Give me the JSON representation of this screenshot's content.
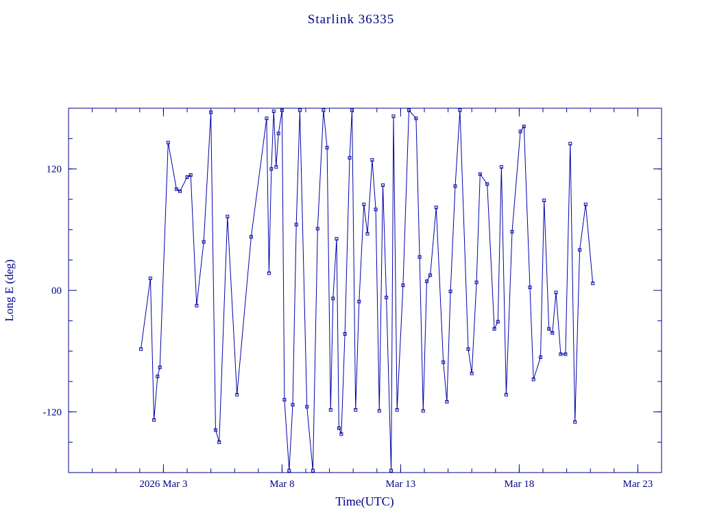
{
  "title": "Starlink 36335",
  "chart_data": {
    "type": "line",
    "title": "Starlink 36335",
    "xlabel": "Time(UTC)",
    "ylabel": "Long E (deg)",
    "x_axis_note": "t measured in days; t=4 corresponds to 2026 Mar 3, t=24 to Mar 23",
    "xlim": [
      0,
      25
    ],
    "ylim": [
      -180,
      180
    ],
    "grid": false,
    "legend_position": "none",
    "x_ticks_major": [
      {
        "t": 4,
        "label": "2026 Mar 3"
      },
      {
        "t": 9,
        "label": "Mar 8"
      },
      {
        "t": 14,
        "label": "Mar 13"
      },
      {
        "t": 19,
        "label": "Mar 18"
      },
      {
        "t": 24,
        "label": "Mar 23"
      }
    ],
    "x_minor_step": 1,
    "y_ticks_major": [
      {
        "v": 120,
        "label": "120"
      },
      {
        "v": 0,
        "label": "00"
      },
      {
        "v": -120,
        "label": "-120"
      }
    ],
    "y_minor_step": 30,
    "colors": {
      "line": "#0000a8",
      "marker": "#0000a8",
      "axis": "#00008b",
      "text": "#00008b",
      "background": "#ffffff"
    },
    "series": [
      {
        "name": "Long E (deg)",
        "marker": "open-square",
        "points": [
          [
            3.05,
            -58
          ],
          [
            3.45,
            12
          ],
          [
            3.6,
            -128
          ],
          [
            3.75,
            -85
          ],
          [
            3.85,
            -76
          ],
          [
            4.2,
            146
          ],
          [
            4.55,
            100
          ],
          [
            4.7,
            98
          ],
          [
            5.0,
            112
          ],
          [
            5.15,
            114
          ],
          [
            5.4,
            -15
          ],
          [
            5.7,
            48
          ],
          [
            6.0,
            176
          ],
          [
            6.2,
            -138
          ],
          [
            6.35,
            -150
          ],
          [
            6.7,
            73
          ],
          [
            7.1,
            -103
          ],
          [
            7.7,
            53
          ],
          [
            8.35,
            170
          ],
          [
            8.45,
            17
          ],
          [
            8.55,
            120
          ],
          [
            8.65,
            177
          ],
          [
            8.75,
            122
          ],
          [
            8.85,
            155
          ],
          [
            9.0,
            178
          ],
          [
            9.1,
            -108
          ],
          [
            9.3,
            -178
          ],
          [
            9.45,
            -113
          ],
          [
            9.6,
            65
          ],
          [
            9.75,
            178
          ],
          [
            10.05,
            -115
          ],
          [
            10.3,
            -178
          ],
          [
            10.5,
            61
          ],
          [
            10.75,
            178
          ],
          [
            10.9,
            141
          ],
          [
            11.05,
            -118
          ],
          [
            11.15,
            -8
          ],
          [
            11.3,
            51
          ],
          [
            11.4,
            -136
          ],
          [
            11.5,
            -142
          ],
          [
            11.65,
            -43
          ],
          [
            11.85,
            131
          ],
          [
            11.95,
            178
          ],
          [
            12.1,
            -118
          ],
          [
            12.25,
            -11
          ],
          [
            12.45,
            85
          ],
          [
            12.6,
            56
          ],
          [
            12.8,
            129
          ],
          [
            12.95,
            80
          ],
          [
            13.1,
            -119
          ],
          [
            13.25,
            104
          ],
          [
            13.4,
            -7
          ],
          [
            13.6,
            -178
          ],
          [
            13.7,
            172
          ],
          [
            13.85,
            -118
          ],
          [
            14.1,
            5
          ],
          [
            14.35,
            178
          ],
          [
            14.65,
            170
          ],
          [
            14.8,
            33
          ],
          [
            14.95,
            -119
          ],
          [
            15.1,
            9
          ],
          [
            15.25,
            15
          ],
          [
            15.5,
            82
          ],
          [
            15.8,
            -71
          ],
          [
            15.95,
            -110
          ],
          [
            16.1,
            -1
          ],
          [
            16.3,
            103
          ],
          [
            16.5,
            178
          ],
          [
            16.85,
            -58
          ],
          [
            17.0,
            -82
          ],
          [
            17.2,
            8
          ],
          [
            17.35,
            115
          ],
          [
            17.65,
            105
          ],
          [
            17.95,
            -38
          ],
          [
            18.1,
            -31
          ],
          [
            18.25,
            122
          ],
          [
            18.45,
            -103
          ],
          [
            18.7,
            58
          ],
          [
            19.05,
            157
          ],
          [
            19.2,
            162
          ],
          [
            19.45,
            3
          ],
          [
            19.6,
            -88
          ],
          [
            19.9,
            -66
          ],
          [
            20.05,
            89
          ],
          [
            20.25,
            -38
          ],
          [
            20.4,
            -42
          ],
          [
            20.55,
            -2
          ],
          [
            20.75,
            -63
          ],
          [
            20.95,
            -63
          ],
          [
            21.15,
            145
          ],
          [
            21.35,
            -130
          ],
          [
            21.55,
            40
          ],
          [
            21.8,
            85
          ],
          [
            22.1,
            7
          ]
        ]
      }
    ]
  }
}
